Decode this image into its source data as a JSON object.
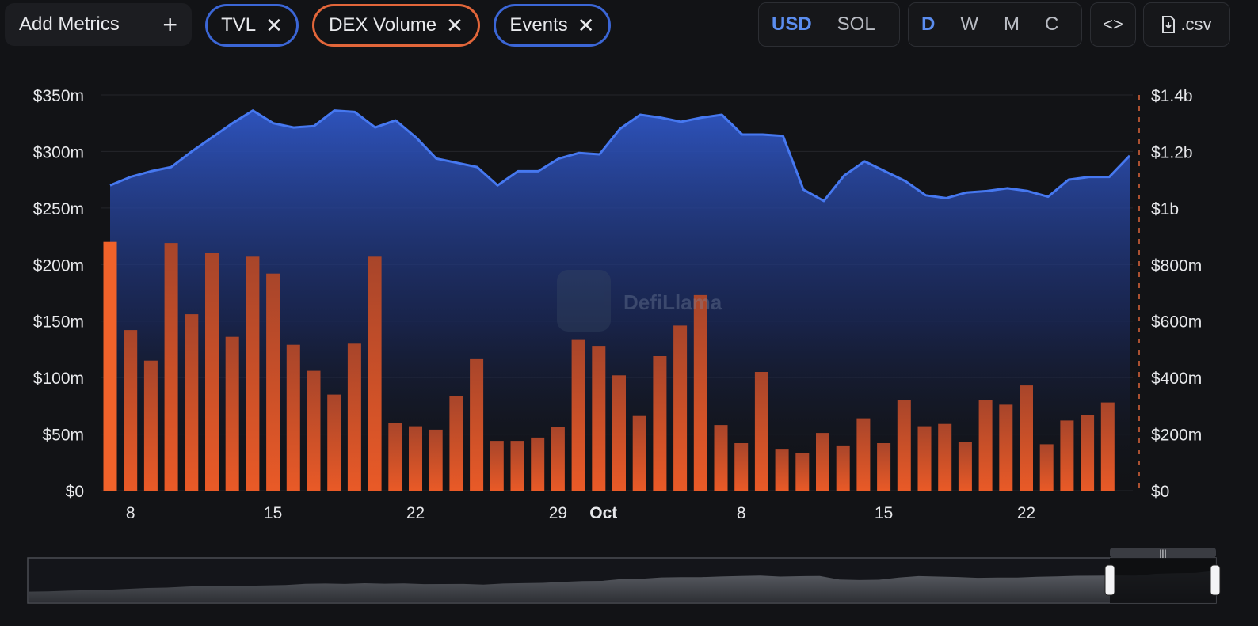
{
  "toolbar": {
    "add_metrics_label": "Add Metrics",
    "chips": [
      {
        "label": "TVL",
        "color": "#3b66d6"
      },
      {
        "label": "DEX Volume",
        "color": "#e2663a"
      },
      {
        "label": "Events",
        "color": "#3b66d6"
      }
    ],
    "currency": [
      "USD",
      "SOL"
    ],
    "currency_active": "USD",
    "periods": [
      "D",
      "W",
      "M",
      "C"
    ],
    "period_active": "D",
    "embed_icon": "code-icon",
    "csv_label": ".csv"
  },
  "watermark": "DefiLlama",
  "colors": {
    "tvl": "#3b66d6",
    "volume": "#e05a2c",
    "background": "#121316"
  },
  "chart_data": {
    "type": "bar+area",
    "x_tick_labels": [
      "8",
      "15",
      "22",
      "29",
      "Oct",
      "8",
      "15",
      "22"
    ],
    "y_left_ticks": [
      "$0",
      "$50m",
      "$100m",
      "$150m",
      "$200m",
      "$250m",
      "$300m",
      "$350m"
    ],
    "y_right_ticks": [
      "$0",
      "$200m",
      "$400m",
      "$600m",
      "$800m",
      "$1b",
      "$1.2b",
      "$1.4b"
    ],
    "ylim_left": [
      0,
      350
    ],
    "ylim_right": [
      0,
      1.4
    ],
    "series": [
      {
        "name": "DEX Volume",
        "axis": "left",
        "unit": "$m",
        "values": [
          220,
          142,
          115,
          219,
          156,
          210,
          136,
          207,
          192,
          129,
          106,
          85,
          130,
          207,
          60,
          57,
          54,
          84,
          117,
          44,
          44,
          47,
          56,
          134,
          128,
          102,
          66,
          119,
          146,
          173,
          58,
          42,
          105,
          37,
          33,
          51,
          40,
          64,
          42,
          80,
          57,
          59,
          43,
          80,
          76,
          93,
          41,
          62,
          67,
          78
        ]
      },
      {
        "name": "TVL",
        "axis": "right",
        "unit": "$b",
        "values": [
          1.08,
          1.11,
          1.13,
          1.145,
          1.2,
          1.25,
          1.3,
          1.345,
          1.3,
          1.285,
          1.29,
          1.345,
          1.34,
          1.285,
          1.31,
          1.25,
          1.175,
          1.16,
          1.145,
          1.08,
          1.13,
          1.13,
          1.175,
          1.195,
          1.19,
          1.28,
          1.33,
          1.32,
          1.305,
          1.32,
          1.33,
          1.26,
          1.26,
          1.255,
          1.065,
          1.025,
          1.115,
          1.165,
          1.13,
          1.095,
          1.045,
          1.035,
          1.055,
          1.06,
          1.07,
          1.06,
          1.04,
          1.1,
          1.11,
          1.11,
          1.185
        ]
      }
    ]
  }
}
